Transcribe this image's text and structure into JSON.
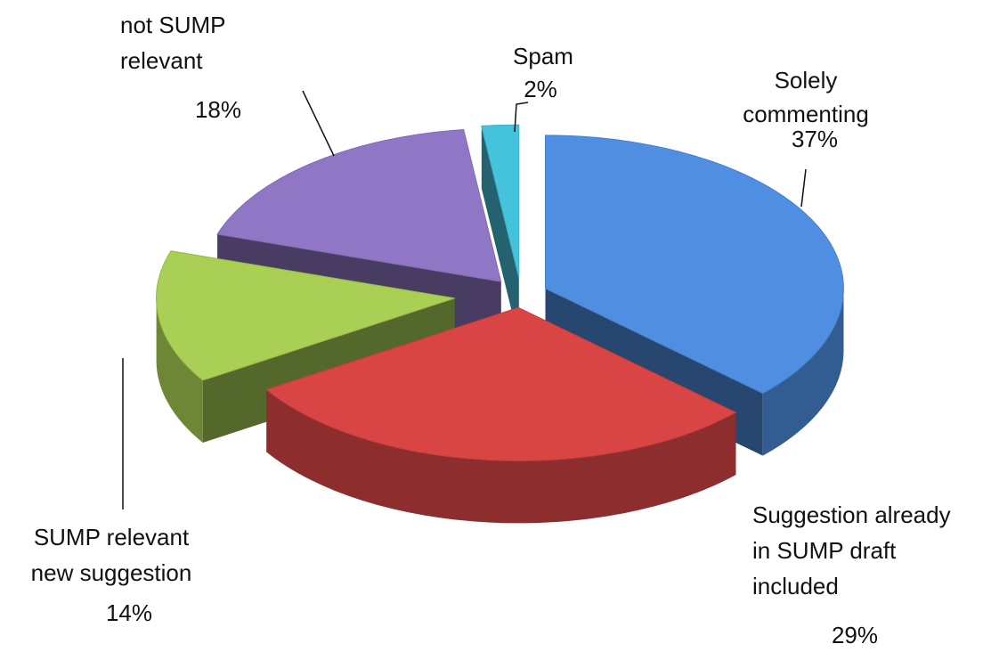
{
  "chart_data": {
    "type": "pie",
    "categories": [
      [
        "Solely",
        "commenting"
      ],
      [
        "Suggestion already",
        "in SUMP draft",
        "included"
      ],
      [
        "SUMP relevant",
        "new suggestion"
      ],
      [
        "not SUMP",
        "relevant"
      ],
      [
        "Spam"
      ]
    ],
    "values": [
      37,
      29,
      14,
      18,
      2
    ],
    "value_labels": [
      "37%",
      "29%",
      "14%",
      "18%",
      "2%"
    ],
    "colors": [
      "#4f8ee0",
      "#d94545",
      "#a9cf55",
      "#9077c6",
      "#45c3dc"
    ]
  }
}
